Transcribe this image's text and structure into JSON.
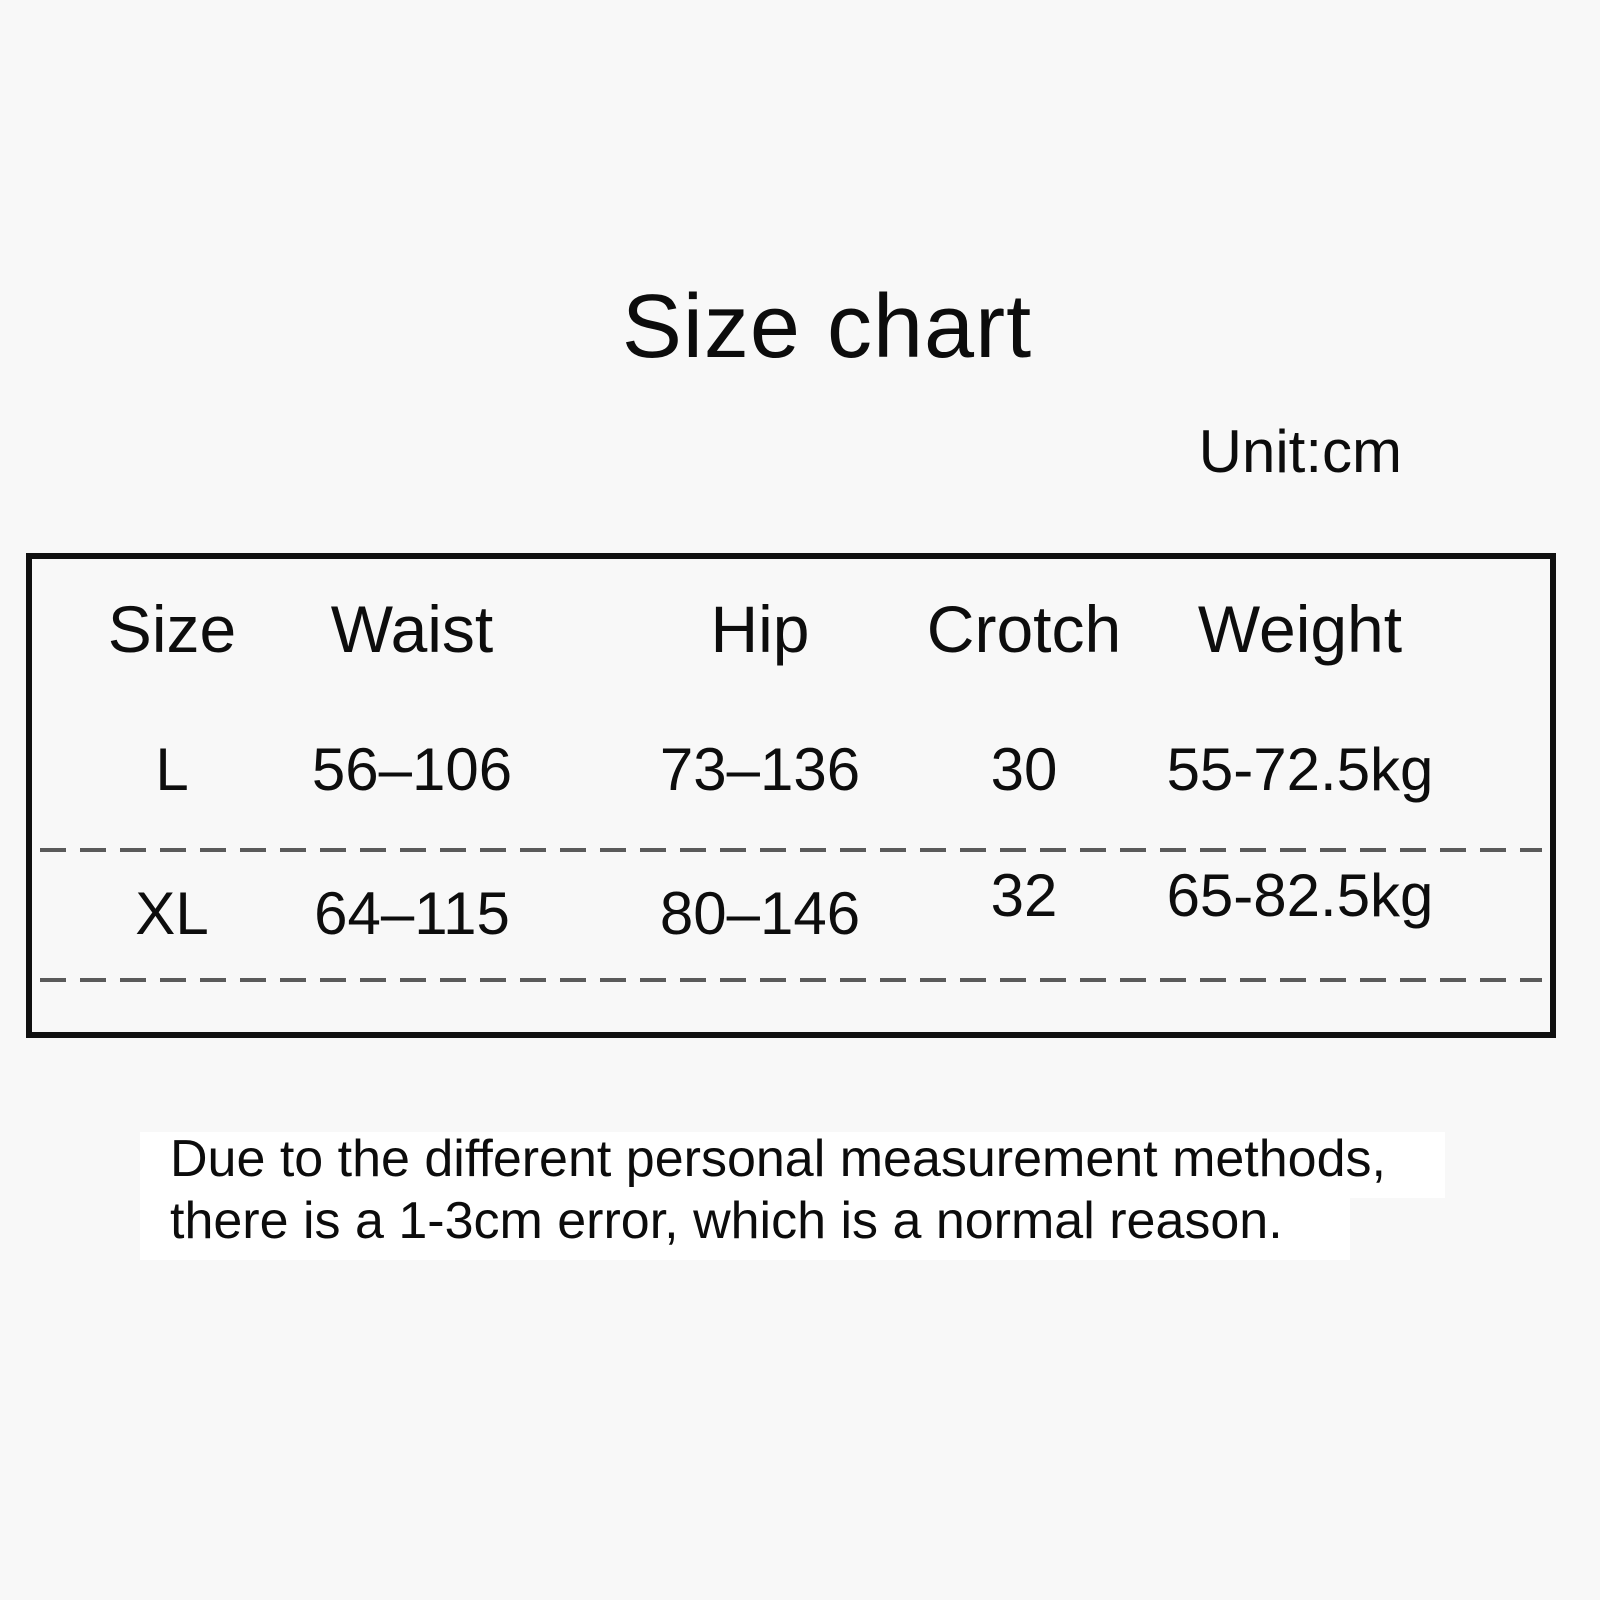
{
  "page": {
    "title": "Size chart",
    "unit_label": "Unit:cm"
  },
  "table": {
    "headers": [
      "Size",
      "Waist",
      "Hip",
      "Crotch",
      "Weight"
    ],
    "rows": [
      {
        "size": "L",
        "waist": "56–106",
        "hip": "73–136",
        "crotch": "30",
        "weight": "55-72.5kg"
      },
      {
        "size": "XL",
        "waist": "64–115",
        "hip": "80–146",
        "crotch": "32",
        "weight": "65-82.5kg"
      }
    ]
  },
  "note": {
    "line1": "Due to the different personal measurement methods,",
    "line2": "there is a 1-3cm error, which is a normal reason."
  },
  "colors": {
    "background": "#f8f8f8",
    "text": "#0d0d0d",
    "table_border": "#101010",
    "dashed_divider": "#5a5a5a",
    "note_highlight": "#ffffff"
  }
}
